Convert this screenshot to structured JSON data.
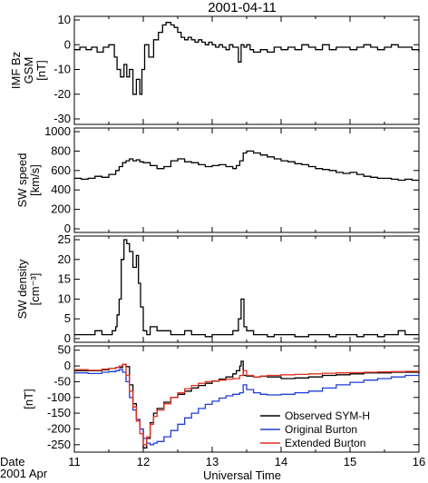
{
  "chart_data": {
    "type": "line",
    "title": "2001-04-11",
    "xlabel": "Universal Time",
    "x_corner_label_1": "Date",
    "x_corner_label_2": "2001 Apr",
    "x_ticks": [
      11,
      12,
      13,
      14,
      15,
      16
    ],
    "xlim": [
      11,
      16
    ],
    "panels": [
      {
        "ylabel_lines": [
          "IMF Bz",
          "GSM",
          "[nT]"
        ],
        "ylim": [
          -30,
          10
        ],
        "yticks": [
          10,
          0,
          -10,
          -20,
          -30
        ],
        "series": [
          {
            "color": "#000000",
            "x": [
              11.0,
              11.08,
              11.17,
              11.25,
              11.33,
              11.42,
              11.5,
              11.58,
              11.62,
              11.67,
              11.72,
              11.76,
              11.8,
              11.85,
              11.9,
              11.95,
              11.98,
              12.02,
              12.08,
              12.15,
              12.22,
              12.28,
              12.33,
              12.4,
              12.45,
              12.5,
              12.55,
              12.6,
              12.65,
              12.7,
              12.75,
              12.8,
              12.85,
              12.9,
              12.95,
              13.0,
              13.05,
              13.1,
              13.15,
              13.2,
              13.25,
              13.3,
              13.38,
              13.42,
              13.46,
              13.5,
              13.55,
              13.6,
              13.7,
              13.8,
              13.9,
              14.0,
              14.1,
              14.2,
              14.3,
              14.4,
              14.5,
              14.6,
              14.7,
              14.8,
              14.9,
              15.0,
              15.1,
              15.2,
              15.3,
              15.4,
              15.5,
              15.6,
              15.7,
              15.8,
              15.9,
              16.0
            ],
            "y": [
              -2,
              -1,
              -2,
              -1,
              -3,
              -1,
              0,
              -5,
              -10,
              -13,
              -8,
              -13,
              -10,
              -20,
              -14,
              -20,
              -10,
              0,
              -5,
              2,
              5,
              8,
              9,
              8,
              7,
              5,
              3,
              2,
              3,
              2,
              1,
              2,
              1,
              0,
              1,
              0,
              -1,
              0,
              -1,
              -2,
              0,
              -1,
              -7,
              0,
              -1,
              0,
              -2,
              -3,
              -2,
              -3,
              -1,
              -2,
              -1,
              -2,
              0,
              -1,
              -2,
              0,
              -2,
              -1,
              -1,
              -2,
              -1,
              0,
              -1,
              -2,
              -1,
              0,
              -1,
              -1,
              -2,
              -3
            ]
          }
        ]
      },
      {
        "ylabel_lines": [
          "SW speed",
          "[km/s]"
        ],
        "ylim": [
          0,
          1000
        ],
        "yticks": [
          1000,
          800,
          600,
          400,
          200,
          0
        ],
        "series": [
          {
            "color": "#000000",
            "x": [
              11.0,
              11.1,
              11.2,
              11.3,
              11.4,
              11.5,
              11.6,
              11.65,
              11.7,
              11.75,
              11.8,
              11.85,
              11.9,
              11.95,
              12.0,
              12.1,
              12.2,
              12.3,
              12.4,
              12.5,
              12.6,
              12.7,
              12.8,
              12.9,
              13.0,
              13.1,
              13.2,
              13.3,
              13.35,
              13.4,
              13.45,
              13.5,
              13.6,
              13.7,
              13.8,
              13.9,
              14.0,
              14.1,
              14.2,
              14.3,
              14.4,
              14.5,
              14.6,
              14.7,
              14.8,
              14.9,
              15.0,
              15.1,
              15.2,
              15.3,
              15.4,
              15.5,
              15.6,
              15.7,
              15.8,
              15.9,
              16.0
            ],
            "y": [
              520,
              510,
              520,
              540,
              530,
              560,
              600,
              640,
              680,
              700,
              720,
              700,
              710,
              690,
              680,
              650,
              620,
              640,
              700,
              720,
              690,
              680,
              660,
              640,
              650,
              660,
              640,
              620,
              650,
              700,
              780,
              800,
              780,
              760,
              740,
              720,
              700,
              690,
              670,
              660,
              640,
              620,
              610,
              600,
              580,
              570,
              580,
              560,
              540,
              530,
              520,
              520,
              510,
              500,
              510,
              500,
              500
            ]
          }
        ]
      },
      {
        "ylabel_lines": [
          "SW density",
          "[cm⁻³]"
        ],
        "ylim": [
          0,
          25
        ],
        "yticks": [
          25,
          20,
          15,
          10,
          5,
          0
        ],
        "series": [
          {
            "color": "#000000",
            "x": [
              11.0,
              11.1,
              11.2,
              11.3,
              11.4,
              11.5,
              11.55,
              11.6,
              11.62,
              11.65,
              11.68,
              11.72,
              11.76,
              11.8,
              11.85,
              11.9,
              11.93,
              11.96,
              12.0,
              12.05,
              12.1,
              12.2,
              12.3,
              12.4,
              12.5,
              12.6,
              12.7,
              12.8,
              12.9,
              13.0,
              13.1,
              13.2,
              13.3,
              13.38,
              13.42,
              13.46,
              13.5,
              13.6,
              13.7,
              13.8,
              13.9,
              14.0,
              14.1,
              14.2,
              14.3,
              14.4,
              14.5,
              14.6,
              14.7,
              14.8,
              14.9,
              15.0,
              15.1,
              15.2,
              15.3,
              15.4,
              15.5,
              15.6,
              15.7,
              15.8,
              15.9,
              16.0
            ],
            "y": [
              1,
              1,
              1,
              2,
              1,
              1,
              2,
              3,
              6,
              10,
              20,
              25,
              24,
              22,
              18,
              21,
              14,
              8,
              2,
              1,
              3,
              2,
              2,
              1,
              1,
              2,
              1,
              1,
              0.5,
              1,
              1,
              1,
              2,
              5,
              10,
              3,
              2,
              1,
              1,
              0.5,
              1,
              1,
              1,
              0.5,
              0.5,
              1,
              1,
              1,
              0.5,
              1,
              1,
              1,
              0.5,
              1,
              1,
              0.5,
              1,
              1,
              2,
              1,
              1,
              1
            ]
          }
        ]
      },
      {
        "ylabel_lines": [
          "[nT]"
        ],
        "ylim": [
          -265,
          55
        ],
        "yticks": [
          50,
          0,
          -50,
          -100,
          -150,
          -200,
          -250
        ],
        "series": [
          {
            "name": "Observed SYM-H",
            "color": "#000000",
            "x": [
              11.0,
              11.2,
              11.4,
              11.5,
              11.6,
              11.7,
              11.75,
              11.8,
              11.85,
              11.9,
              11.95,
              12.0,
              12.05,
              12.1,
              12.15,
              12.2,
              12.3,
              12.4,
              12.5,
              12.6,
              12.7,
              12.8,
              12.9,
              13.0,
              13.1,
              13.2,
              13.3,
              13.35,
              13.4,
              13.42,
              13.45,
              13.5,
              13.6,
              13.7,
              13.8,
              14.0,
              14.2,
              14.4,
              14.6,
              14.8,
              15.0,
              15.2,
              15.4,
              15.6,
              15.8,
              16.0
            ],
            "y": [
              -15,
              -15,
              -12,
              -8,
              -5,
              5,
              -2,
              -60,
              -120,
              -170,
              -200,
              -260,
              -230,
              -180,
              -150,
              -135,
              -115,
              -100,
              -90,
              -80,
              -70,
              -62,
              -55,
              -48,
              -42,
              -35,
              -25,
              -15,
              0,
              15,
              -30,
              -32,
              -35,
              -33,
              -35,
              -40,
              -38,
              -35,
              -30,
              -28,
              -25,
              -22,
              -22,
              -20,
              -20,
              -22
            ]
          },
          {
            "name": "Original Burton",
            "color": "#1f3fd6",
            "x": [
              11.0,
              11.2,
              11.4,
              11.5,
              11.6,
              11.65,
              11.7,
              11.75,
              11.8,
              11.85,
              11.9,
              11.95,
              12.0,
              12.05,
              12.1,
              12.15,
              12.2,
              12.3,
              12.4,
              12.5,
              12.6,
              12.7,
              12.8,
              12.9,
              13.0,
              13.1,
              13.2,
              13.3,
              13.4,
              13.45,
              13.5,
              13.6,
              13.7,
              13.8,
              14.0,
              14.2,
              14.4,
              14.6,
              14.8,
              15.0,
              15.2,
              15.4,
              15.6,
              15.8,
              16.0
            ],
            "y": [
              -22,
              -24,
              -20,
              -18,
              -15,
              -12,
              -20,
              -50,
              -100,
              -140,
              -170,
              -200,
              -230,
              -245,
              -250,
              -245,
              -240,
              -225,
              -205,
              -185,
              -165,
              -150,
              -135,
              -122,
              -112,
              -102,
              -95,
              -90,
              -85,
              -60,
              -75,
              -85,
              -90,
              -92,
              -90,
              -85,
              -80,
              -70,
              -60,
              -52,
              -45,
              -40,
              -35,
              -30,
              -27
            ]
          },
          {
            "name": "Extended Burton",
            "color": "#e0301e",
            "x": [
              11.0,
              11.2,
              11.4,
              11.5,
              11.6,
              11.65,
              11.7,
              11.75,
              11.8,
              11.85,
              11.9,
              11.95,
              12.0,
              12.05,
              12.1,
              12.15,
              12.2,
              12.3,
              12.4,
              12.5,
              12.6,
              12.7,
              12.8,
              12.9,
              13.0,
              13.1,
              13.2,
              13.3,
              13.4,
              13.45,
              13.5,
              13.6,
              13.7,
              13.8,
              14.0,
              14.2,
              14.4,
              14.6,
              14.8,
              15.0,
              15.2,
              15.4,
              15.6,
              15.8,
              16.0
            ],
            "y": [
              -12,
              -14,
              -10,
              -8,
              -5,
              0,
              5,
              -30,
              -80,
              -130,
              -175,
              -215,
              -250,
              -225,
              -185,
              -160,
              -140,
              -120,
              -100,
              -85,
              -72,
              -62,
              -55,
              -50,
              -47,
              -45,
              -42,
              -40,
              -30,
              -15,
              -30,
              -35,
              -32,
              -30,
              -28,
              -27,
              -25,
              -23,
              -22,
              -21,
              -20,
              -19,
              -18,
              -17,
              -16
            ]
          }
        ],
        "legend": {
          "placement": "bottom-right"
        }
      }
    ]
  }
}
